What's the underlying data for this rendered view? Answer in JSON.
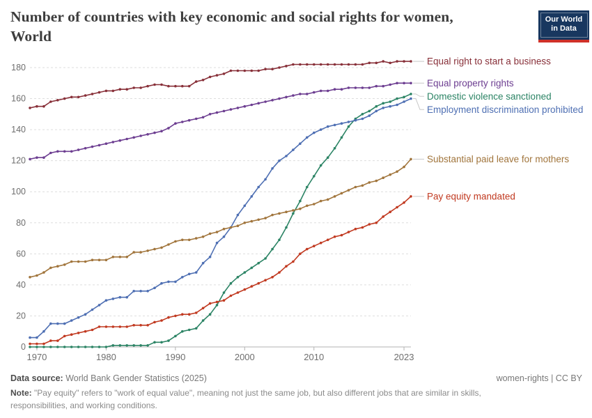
{
  "header": {
    "title_line1": "Number of countries with key economic and social rights for women,",
    "title_line2": "World"
  },
  "logo": {
    "line1": "Our World",
    "line2": "in Data"
  },
  "chart_data": {
    "type": "line",
    "title": "Number of countries with key economic and social rights for women, World",
    "xlabel": "",
    "ylabel": "",
    "ylim": [
      0,
      180
    ],
    "yticks": [
      0,
      20,
      40,
      60,
      80,
      100,
      120,
      140,
      160,
      180
    ],
    "xticks": [
      1970,
      1980,
      1990,
      2000,
      2010,
      2023
    ],
    "grid": "horizontal-dashed",
    "legend_position": "right",
    "marker": "point",
    "x": [
      1969,
      1970,
      1971,
      1972,
      1973,
      1974,
      1975,
      1976,
      1977,
      1978,
      1979,
      1980,
      1981,
      1982,
      1983,
      1984,
      1985,
      1986,
      1987,
      1988,
      1989,
      1990,
      1991,
      1992,
      1993,
      1994,
      1995,
      1996,
      1997,
      1998,
      1999,
      2000,
      2001,
      2002,
      2003,
      2004,
      2005,
      2006,
      2007,
      2008,
      2009,
      2010,
      2011,
      2012,
      2013,
      2014,
      2015,
      2016,
      2017,
      2018,
      2019,
      2020,
      2021,
      2022,
      2023,
      2024
    ],
    "series": [
      {
        "name": "Equal right to start a business",
        "color": "#883039",
        "values": [
          154,
          155,
          155,
          158,
          159,
          160,
          161,
          161,
          162,
          163,
          164,
          165,
          165,
          166,
          166,
          167,
          167,
          168,
          169,
          169,
          168,
          168,
          168,
          168,
          171,
          172,
          174,
          175,
          176,
          178,
          178,
          178,
          178,
          178,
          179,
          179,
          180,
          181,
          182,
          182,
          182,
          182,
          182,
          182,
          182,
          182,
          182,
          182,
          182,
          183,
          183,
          184,
          183,
          184,
          184,
          184
        ]
      },
      {
        "name": "Equal property rights",
        "color": "#6D3E91",
        "values": [
          121,
          122,
          122,
          125,
          126,
          126,
          126,
          127,
          128,
          129,
          130,
          131,
          132,
          133,
          134,
          135,
          136,
          137,
          138,
          139,
          141,
          144,
          145,
          146,
          147,
          148,
          150,
          151,
          152,
          153,
          154,
          155,
          156,
          157,
          158,
          159,
          160,
          161,
          162,
          163,
          163,
          164,
          165,
          165,
          166,
          166,
          167,
          167,
          167,
          167,
          168,
          168,
          169,
          170,
          170,
          170
        ]
      },
      {
        "name": "Domestic violence sanctioned",
        "color": "#2C8465",
        "values": [
          0,
          0,
          0,
          0,
          0,
          0,
          0,
          0,
          0,
          0,
          0,
          0,
          1,
          1,
          1,
          1,
          1,
          1,
          3,
          3,
          4,
          7,
          10,
          11,
          12,
          17,
          21,
          27,
          35,
          41,
          45,
          48,
          51,
          54,
          57,
          63,
          69,
          77,
          86,
          94,
          103,
          110,
          117,
          122,
          128,
          135,
          142,
          147,
          150,
          152,
          155,
          157,
          158,
          160,
          161,
          163
        ]
      },
      {
        "name": "Employment discrimination prohibited",
        "color": "#4E6FB3",
        "values": [
          6,
          6,
          10,
          15,
          15,
          15,
          17,
          19,
          21,
          24,
          27,
          30,
          31,
          32,
          32,
          36,
          36,
          36,
          38,
          41,
          42,
          42,
          45,
          47,
          48,
          54,
          58,
          67,
          71,
          77,
          85,
          91,
          97,
          103,
          108,
          115,
          120,
          123,
          127,
          131,
          135,
          138,
          140,
          142,
          143,
          144,
          145,
          146,
          147,
          149,
          152,
          154,
          155,
          156,
          158,
          160
        ]
      },
      {
        "name": "Substantial paid leave for mothers",
        "color": "#A1753C",
        "values": [
          45,
          46,
          48,
          51,
          52,
          53,
          55,
          55,
          55,
          56,
          56,
          56,
          58,
          58,
          58,
          61,
          61,
          62,
          63,
          64,
          66,
          68,
          69,
          69,
          70,
          71,
          73,
          74,
          76,
          77,
          78,
          80,
          81,
          82,
          83,
          85,
          86,
          87,
          88,
          89,
          91,
          92,
          94,
          95,
          97,
          99,
          101,
          103,
          104,
          106,
          107,
          109,
          111,
          113,
          116,
          121
        ]
      },
      {
        "name": "Pay equity mandated",
        "color": "#C13A21",
        "values": [
          2,
          2,
          2,
          4,
          4,
          7,
          8,
          9,
          10,
          11,
          13,
          13,
          13,
          13,
          13,
          14,
          14,
          14,
          16,
          17,
          19,
          20,
          21,
          21,
          22,
          25,
          28,
          29,
          30,
          33,
          35,
          37,
          39,
          41,
          43,
          45,
          48,
          52,
          55,
          60,
          63,
          65,
          67,
          69,
          71,
          72,
          74,
          76,
          77,
          79,
          80,
          84,
          87,
          90,
          93,
          97
        ]
      }
    ]
  },
  "footer": {
    "datasource_label": "Data source:",
    "datasource_value": "World Bank Gender Statistics (2025)",
    "attribution": "women-rights | CC BY",
    "note_label": "Note:",
    "note_text": "\"Pay equity\" refers to \"work of equal value\", meaning not just the same job, but also different jobs that are similar in skills, responsibilities, and working conditions."
  }
}
